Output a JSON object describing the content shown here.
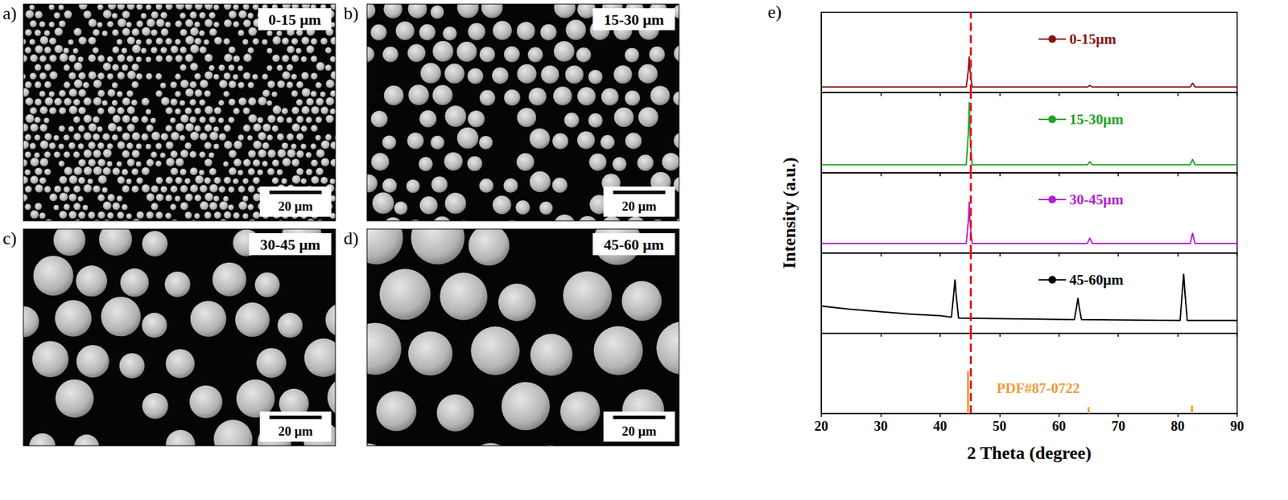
{
  "sem_panels": [
    {
      "letter": "a)",
      "label": "0-15 μm",
      "scale_bar": "20 μm"
    },
    {
      "letter": "b)",
      "label": "15-30 μm",
      "scale_bar": "20 μm"
    },
    {
      "letter": "c)",
      "label": "30-45 μm",
      "scale_bar": "20 μm"
    },
    {
      "letter": "d)",
      "label": "45-60 μm",
      "scale_bar": "20 μm"
    }
  ],
  "chart_data": {
    "type": "line",
    "letter": "e)",
    "xlabel": "2 Theta (degree)",
    "ylabel": "Intensity (a.u.)",
    "xlim": [
      20,
      90
    ],
    "xticks": [
      20,
      30,
      40,
      50,
      60,
      70,
      80,
      90
    ],
    "ylim": [
      0,
      100
    ],
    "tick_labels": "x",
    "grid": false,
    "legend": "right",
    "reference_line": {
      "x": 45.1,
      "color": "#e8141c",
      "line_style": "dashed"
    },
    "series": [
      {
        "name": "0-15μm",
        "color": "#8b1212",
        "x": [
          20,
          44.4,
          44.75,
          44.9,
          45.05,
          45.4,
          64.8,
          65.2,
          65.6,
          82.1,
          82.5,
          82.9,
          90
        ],
        "values": [
          7,
          7,
          28,
          45,
          26,
          7,
          7,
          9,
          7,
          7,
          12,
          7,
          7
        ]
      },
      {
        "name": "15-30μm",
        "color": "#22a322",
        "x": [
          20,
          44.4,
          44.75,
          44.9,
          45.05,
          45.4,
          64.8,
          65.2,
          65.6,
          82.1,
          82.5,
          82.9,
          90
        ],
        "values": [
          10,
          10,
          50,
          88,
          45,
          10,
          10,
          14,
          10,
          10,
          17,
          10,
          10
        ]
      },
      {
        "name": "30-45μm",
        "color": "#b31fd1",
        "x": [
          20,
          44.4,
          44.75,
          44.9,
          45.05,
          45.4,
          64.8,
          65.2,
          65.6,
          82.1,
          82.5,
          82.9,
          90
        ],
        "values": [
          12,
          12,
          40,
          64,
          36,
          12,
          12,
          19,
          12,
          12,
          25,
          12,
          12
        ]
      },
      {
        "name": "45-60μm",
        "color": "#000000",
        "x": [
          20,
          25,
          30,
          35,
          40,
          41.9,
          42.3,
          42.5,
          42.7,
          43.1,
          62.6,
          63.0,
          63.2,
          63.4,
          63.8,
          80.4,
          80.8,
          81.0,
          81.2,
          81.6,
          90
        ],
        "values": [
          34,
          30,
          27,
          24,
          22,
          20,
          50,
          67,
          48,
          19,
          17,
          34,
          44,
          33,
          17,
          16,
          55,
          74,
          52,
          16,
          16
        ]
      },
      {
        "name": "PDF#87-0722",
        "type": "bar",
        "color": "#f39a3c",
        "x": [
          44.7,
          65.0,
          82.4
        ],
        "values": [
          53,
          8,
          10
        ]
      }
    ]
  }
}
